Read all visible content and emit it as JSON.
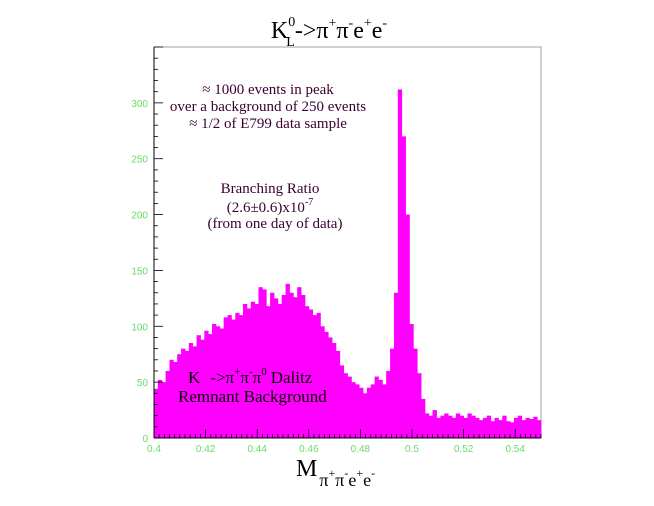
{
  "title": {
    "base": "K",
    "sup": "0",
    "sub": "L",
    "rest": "->π",
    "p1": "+",
    "pi2": "π",
    "p2": "-",
    "e1": "e",
    "p3": "+",
    "e2": "e",
    "p4": "-"
  },
  "xlabel": {
    "base": "M",
    "pi1": "π",
    "s1": "+",
    "pi2": "π",
    "s2": "-",
    "e1": "e",
    "s3": "+",
    "e2": "e",
    "s4": "-"
  },
  "annotations": {
    "line1": "≈ 1000 events in peak",
    "line2": "over a background of 250 events",
    "line3": "≈ 1/2 of E799 data sample",
    "br_title": "Branching Ratio",
    "br_value": "(2.6±0.6)x10",
    "br_exp": "-7",
    "br_note": "(from one day of data)",
    "dalitz_k": "K",
    "dalitz_arrow": "->π",
    "dalitz_p1": "+",
    "dalitz_pi2": "π",
    "dalitz_p2": "-",
    "dalitz_pi3": "π",
    "dalitz_p3": "0",
    "dalitz_word": "Dalitz",
    "dalitz_line2": "Remnant Background"
  },
  "colors": {
    "bars": "#ff00ff",
    "axis": "#000000",
    "tick_labels": "#66dd66"
  },
  "chart_data": {
    "type": "bar",
    "histogram": true,
    "xlim": [
      0.4,
      0.55
    ],
    "ylim": [
      0,
      350
    ],
    "bin_width": 0.0015,
    "x_ticks": [
      0.4,
      0.42,
      0.44,
      0.46,
      0.48,
      0.5,
      0.52,
      0.54
    ],
    "x_tick_labels": [
      "0.4",
      "0.42",
      "0.44",
      "0.46",
      "0.48",
      "0.5",
      "0.52",
      "0.54"
    ],
    "y_ticks": [
      0,
      50,
      100,
      150,
      200,
      250,
      300
    ],
    "y_tick_labels": [
      "0",
      "50",
      "100",
      "150",
      "200",
      "250",
      "300"
    ],
    "values": [
      44,
      52,
      50,
      60,
      70,
      68,
      75,
      80,
      78,
      85,
      82,
      92,
      88,
      96,
      93,
      102,
      100,
      98,
      108,
      110,
      106,
      112,
      110,
      120,
      116,
      122,
      120,
      135,
      133,
      118,
      130,
      125,
      120,
      128,
      138,
      130,
      126,
      135,
      128,
      118,
      115,
      110,
      112,
      100,
      95,
      90,
      85,
      78,
      65,
      58,
      55,
      50,
      48,
      45,
      40,
      45,
      48,
      55,
      52,
      48,
      60,
      80,
      130,
      312,
      270,
      200,
      102,
      80,
      58,
      35,
      22,
      20,
      25,
      18,
      20,
      22,
      20,
      18,
      22,
      20,
      18,
      22,
      20,
      18,
      16,
      18,
      20,
      15,
      18,
      16,
      20,
      15,
      14,
      18,
      20,
      16,
      18,
      17,
      19,
      16
    ]
  }
}
